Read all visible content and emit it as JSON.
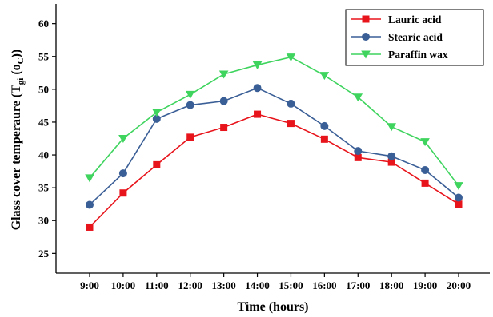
{
  "chart_data": {
    "type": "line",
    "xlabel": "Time (hours)",
    "ylabel": {
      "prefix": "Glass cover temperaure (T",
      "sub": "gi",
      "mid": " (o",
      "sub2": "C",
      "suffix": "))"
    },
    "categories": [
      "9:00",
      "10:00",
      "11:00",
      "12:00",
      "13:00",
      "14:00",
      "15:00",
      "16:00",
      "17:00",
      "18:00",
      "19:00",
      "20:00"
    ],
    "ylim": [
      22,
      63
    ],
    "yticks": [
      25,
      30,
      35,
      40,
      45,
      50,
      55,
      60
    ],
    "grid": false,
    "legend_position": "top-right",
    "series": [
      {
        "name": "Lauric acid",
        "color": "#e8141c",
        "marker": "square",
        "values": [
          29.0,
          34.2,
          38.5,
          42.7,
          44.2,
          46.2,
          44.8,
          42.4,
          39.6,
          38.9,
          35.7,
          32.5
        ]
      },
      {
        "name": "Stearic acid",
        "color": "#3a5e96",
        "marker": "circle",
        "values": [
          32.4,
          37.2,
          45.5,
          47.6,
          48.2,
          50.2,
          47.8,
          44.4,
          40.6,
          39.8,
          37.7,
          33.5
        ]
      },
      {
        "name": "Paraffin wax",
        "color": "#3fd45e",
        "marker": "triangle-down",
        "values": [
          36.5,
          42.5,
          46.5,
          49.2,
          52.3,
          53.7,
          54.9,
          52.1,
          48.8,
          44.3,
          42.0,
          35.3
        ]
      }
    ]
  }
}
